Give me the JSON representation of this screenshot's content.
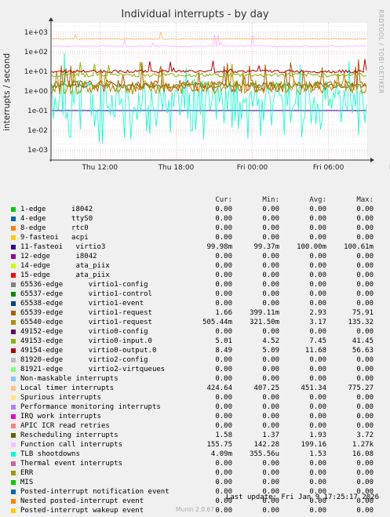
{
  "side_text": "RRDTOOL / TOBI OETIKER",
  "footer": "Munin 2.0.67",
  "last_update": "Last update: Fri Jan  9 17:25:17 2026",
  "headers": {
    "cur": "Cur:",
    "min": "Min:",
    "avg": "Avg:",
    "max": "Max:"
  },
  "chart_data": {
    "type": "line",
    "title": "Individual interrupts - by day",
    "ylabel": "interrupts / second",
    "yscale": "log",
    "ylim": [
      0.0003,
      3000
    ],
    "yticks": [
      "1e-03",
      "1e-02",
      "1e-01",
      "1e+00",
      "1e+01",
      "1e+02",
      "1e+03"
    ],
    "xticks": [
      "Thu 12:00",
      "Thu 18:00",
      "Fri 00:00",
      "Fri 06:00",
      "Fri 12:00"
    ],
    "grid": true,
    "series": [
      {
        "name": "1-edge      i8042",
        "color": "#00cc00",
        "cur": "0.00",
        "min": "0.00",
        "avg": "0.00",
        "max": "0.00"
      },
      {
        "name": "4-edge      ttyS0",
        "color": "#0066b3",
        "cur": "0.00",
        "min": "0.00",
        "avg": "0.00",
        "max": "0.00"
      },
      {
        "name": "8-edge      rtc0",
        "color": "#ff8000",
        "cur": "0.00",
        "min": "0.00",
        "avg": "0.00",
        "max": "0.00"
      },
      {
        "name": "9-fasteoi   acpi",
        "color": "#ffcc00",
        "cur": "0.00",
        "min": "0.00",
        "avg": "0.00",
        "max": "0.00"
      },
      {
        "name": "11-fasteoi   virtio3",
        "color": "#330099",
        "cur": "99.98m",
        "min": "99.37m",
        "avg": "100.00m",
        "max": "100.61m"
      },
      {
        "name": "12-edge      i8042",
        "color": "#990099",
        "cur": "0.00",
        "min": "0.00",
        "avg": "0.00",
        "max": "0.00"
      },
      {
        "name": "14-edge      ata_piix",
        "color": "#ccff00",
        "cur": "0.00",
        "min": "0.00",
        "avg": "0.00",
        "max": "0.00"
      },
      {
        "name": "15-edge      ata_piix",
        "color": "#ff0000",
        "cur": "0.00",
        "min": "0.00",
        "avg": "0.00",
        "max": "0.00"
      },
      {
        "name": "65536-edge      virtio1-config",
        "color": "#808080",
        "cur": "0.00",
        "min": "0.00",
        "avg": "0.00",
        "max": "0.00"
      },
      {
        "name": "65537-edge      virtio1-control",
        "color": "#008f00",
        "cur": "0.00",
        "min": "0.00",
        "avg": "0.00",
        "max": "0.00"
      },
      {
        "name": "65538-edge      virtio1-event",
        "color": "#00487d",
        "cur": "0.00",
        "min": "0.00",
        "avg": "0.00",
        "max": "0.00"
      },
      {
        "name": "65539-edge      virtio1-request",
        "color": "#b35a00",
        "cur": "1.66",
        "min": "399.11m",
        "avg": "2.93",
        "max": "75.91"
      },
      {
        "name": "65540-edge      virtio1-request",
        "color": "#b38f00",
        "cur": "505.44m",
        "min": "321.50m",
        "avg": "3.17",
        "max": "135.32"
      },
      {
        "name": "49152-edge      virtio0-config",
        "color": "#6b006b",
        "cur": "0.00",
        "min": "0.00",
        "avg": "0.00",
        "max": "0.00"
      },
      {
        "name": "49153-edge      virtio0-input.0",
        "color": "#8fb300",
        "cur": "5.01",
        "min": "4.52",
        "avg": "7.45",
        "max": "41.45"
      },
      {
        "name": "49154-edge      virtio0-output.0",
        "color": "#b30000",
        "cur": "8.49",
        "min": "5.09",
        "avg": "11.68",
        "max": "56.63"
      },
      {
        "name": "81920-edge      virtio2-config",
        "color": "#bebebe",
        "cur": "0.00",
        "min": "0.00",
        "avg": "0.00",
        "max": "0.00"
      },
      {
        "name": "81921-edge      virtio2-virtqueues",
        "color": "#80ff80",
        "cur": "0.00",
        "min": "0.00",
        "avg": "0.00",
        "max": "0.00"
      },
      {
        "name": "Non-maskable interrupts",
        "color": "#80c9ff",
        "cur": "0.00",
        "min": "0.00",
        "avg": "0.00",
        "max": "0.00"
      },
      {
        "name": "Local timer interrupts",
        "color": "#ffc080",
        "cur": "424.64",
        "min": "407.25",
        "avg": "451.34",
        "max": "775.27"
      },
      {
        "name": "Spurious interrupts",
        "color": "#ffe680",
        "cur": "0.00",
        "min": "0.00",
        "avg": "0.00",
        "max": "0.00"
      },
      {
        "name": "Performance monitoring interrupts",
        "color": "#aa80ff",
        "cur": "0.00",
        "min": "0.00",
        "avg": "0.00",
        "max": "0.00"
      },
      {
        "name": "IRQ work interrupts",
        "color": "#ee00cc",
        "cur": "0.00",
        "min": "0.00",
        "avg": "0.00",
        "max": "0.00"
      },
      {
        "name": "APIC ICR read retries",
        "color": "#ff8080",
        "cur": "0.00",
        "min": "0.00",
        "avg": "0.00",
        "max": "0.00"
      },
      {
        "name": "Rescheduling interrupts",
        "color": "#666600",
        "cur": "1.58",
        "min": "1.37",
        "avg": "1.93",
        "max": "3.72"
      },
      {
        "name": "Function call interrupts",
        "color": "#ffbfff",
        "cur": "155.75",
        "min": "142.28",
        "avg": "199.16",
        "max": "1.27k"
      },
      {
        "name": "TLB shootdowns",
        "color": "#00ffcc",
        "cur": "4.09m",
        "min": "355.56u",
        "avg": "1.53",
        "max": "16.08"
      },
      {
        "name": "Thermal event interrupts",
        "color": "#cc6699",
        "cur": "0.00",
        "min": "0.00",
        "avg": "0.00",
        "max": "0.00"
      },
      {
        "name": "ERR",
        "color": "#999900",
        "cur": "0.00",
        "min": "0.00",
        "avg": "0.00",
        "max": "0.00"
      },
      {
        "name": "MIS",
        "color": "#00cc00",
        "cur": "0.00",
        "min": "0.00",
        "avg": "0.00",
        "max": "0.00"
      },
      {
        "name": "Posted-interrupt notification event",
        "color": "#0066b3",
        "cur": "0.00",
        "min": "0.00",
        "avg": "0.00",
        "max": "0.00"
      },
      {
        "name": "Nested posted-interrupt event",
        "color": "#ff8000",
        "cur": "0.00",
        "min": "0.00",
        "avg": "0.00",
        "max": "0.00"
      },
      {
        "name": "Posted-interrupt wakeup event",
        "color": "#ffcc00",
        "cur": "0.00",
        "min": "0.00",
        "avg": "0.00",
        "max": "0.00"
      }
    ]
  }
}
